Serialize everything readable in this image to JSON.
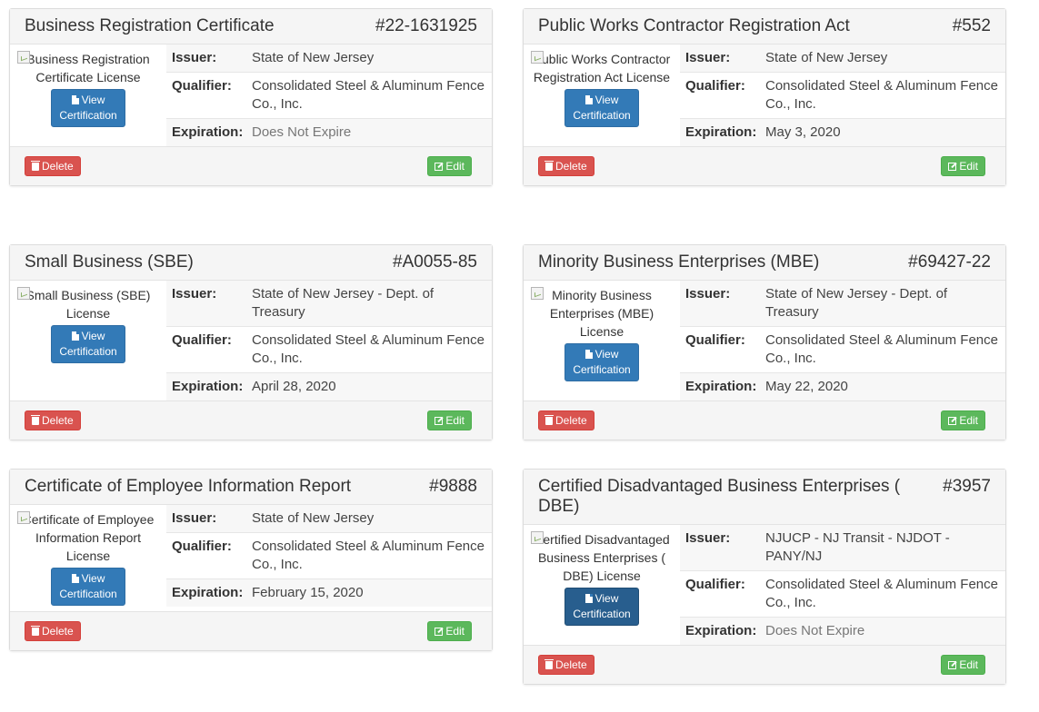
{
  "labels": {
    "issuer": "Issuer:",
    "qualifier": "Qualifier:",
    "expiration": "Expiration:",
    "view_line1": "View",
    "view_line2": "Certification",
    "delete": "Delete",
    "edit": "Edit"
  },
  "cards": [
    {
      "title": "Business Registration Certificate",
      "number": "#22-1631925",
      "thumb_alt": "Business Registration Certificate License",
      "issuer": "State of New Jersey",
      "qualifier": "Consolidated Steel & Aluminum Fence Co., Inc.",
      "expiration": "Does Not Expire"
    },
    {
      "title": "Public Works Contractor Registration Act",
      "number": "#552",
      "thumb_alt": "Public Works Contractor Registration Act License",
      "issuer": "State of New Jersey",
      "qualifier": "Consolidated Steel & Aluminum Fence Co., Inc.",
      "expiration": "May 3, 2020"
    },
    {
      "title": "Small Business (SBE)",
      "number": "#A0055-85",
      "thumb_alt": "Small Business (SBE) License",
      "issuer": "State of New Jersey - Dept. of Treasury",
      "qualifier": "Consolidated Steel & Aluminum Fence Co., Inc.",
      "expiration": "April 28, 2020"
    },
    {
      "title": "Minority Business Enterprises (MBE)",
      "number": "#69427-22",
      "thumb_alt": "Minority Business Enterprises (MBE) License",
      "issuer": "State of New Jersey - Dept. of Treasury",
      "qualifier": "Consolidated Steel & Aluminum Fence Co., Inc.",
      "expiration": "May 22, 2020"
    },
    {
      "title": "Certificate of Employee Information Report",
      "number": "#9888",
      "thumb_alt": "Certificate of Employee Information Report License",
      "issuer": "State of New Jersey",
      "qualifier": "Consolidated Steel & Aluminum Fence Co., Inc.",
      "expiration": "February 15, 2020"
    },
    {
      "title": "Certified Disadvantaged Business Enterprises ( DBE)",
      "number": "#3957",
      "thumb_alt": "Certified Disadvantaged Business Enterprises ( DBE) License",
      "issuer": "NJUCP - NJ Transit - NJDOT - PANY/NJ",
      "qualifier": "Consolidated Steel & Aluminum Fence Co., Inc.",
      "expiration": "Does Not Expire"
    }
  ]
}
